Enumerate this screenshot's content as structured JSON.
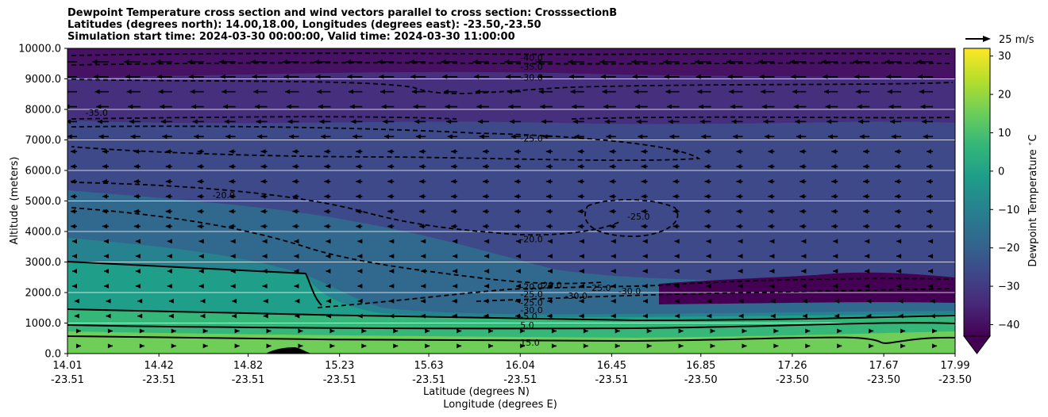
{
  "chart_data": {
    "type": "heatmap",
    "title_lines": [
      "Dewpoint Temperature cross section and wind vectors parallel to cross section: CrosssectionB",
      "Latitudes (degrees north): 14.00,18.00, Longitudes (degrees east): -23.50,-23.50",
      "Simulation start time: 2024-03-30 00:00:00, Valid time: 2024-03-30 11:00:00"
    ],
    "ylabel": "Altitude (meters)",
    "xlabel_lines": [
      "Latitude (degrees N)",
      "Longitude (degrees E)"
    ],
    "y_ticks": [
      "0.0",
      "1000.0",
      "2000.0",
      "3000.0",
      "4000.0",
      "5000.0",
      "6000.0",
      "7000.0",
      "8000.0",
      "9000.0",
      "10000.0"
    ],
    "ylim": [
      0,
      10000
    ],
    "x_ticks": [
      {
        "lat": "14.01",
        "lon": "-23.51"
      },
      {
        "lat": "14.42",
        "lon": "-23.51"
      },
      {
        "lat": "14.82",
        "lon": "-23.51"
      },
      {
        "lat": "15.23",
        "lon": "-23.51"
      },
      {
        "lat": "15.63",
        "lon": "-23.51"
      },
      {
        "lat": "16.04",
        "lon": "-23.51"
      },
      {
        "lat": "16.45",
        "lon": "-23.51"
      },
      {
        "lat": "16.85",
        "lon": "-23.50"
      },
      {
        "lat": "17.26",
        "lon": "-23.50"
      },
      {
        "lat": "17.67",
        "lon": "-23.50"
      },
      {
        "lat": "17.99",
        "lon": "-23.50"
      }
    ],
    "xlim": [
      14.01,
      17.99
    ],
    "colorbar": {
      "label": "Dewpoint Temperature $^\\circ$C",
      "ticks": [
        "30",
        "20",
        "10",
        "0",
        "−10",
        "−20",
        "−30",
        "−40"
      ],
      "range": [
        -43,
        32
      ],
      "colormap": [
        "#440154",
        "#482878",
        "#3e4989",
        "#31688e",
        "#26828e",
        "#1f9e89",
        "#35b779",
        "#6ece58",
        "#b5de2b",
        "#fde725"
      ],
      "extend": "min"
    },
    "quiver_key": {
      "label": "25 m/s",
      "speed": 25
    },
    "wind": "westward (negative) aloft, eastward (positive) in lowest layer",
    "contour_labels": [
      {
        "text": "-40.0",
        "lat": 16.04,
        "alt": 9700
      },
      {
        "text": "-35.0",
        "lat": 16.04,
        "alt": 9400
      },
      {
        "text": "-30.0",
        "lat": 16.04,
        "alt": 9050
      },
      {
        "text": "-35.0",
        "lat": 14.09,
        "alt": 7900
      },
      {
        "text": "-25.0",
        "lat": 16.04,
        "alt": 7050
      },
      {
        "text": "-20.0",
        "lat": 14.66,
        "alt": 5200
      },
      {
        "text": "-25.0",
        "lat": 16.52,
        "alt": 4500
      },
      {
        "text": "-20.0",
        "lat": 16.04,
        "alt": 3750
      },
      {
        "text": "-20.0",
        "lat": 16.04,
        "alt": 2200
      },
      {
        "text": "20.0",
        "lat": 16.14,
        "alt": 2250
      },
      {
        "text": "-25.0",
        "lat": 16.04,
        "alt": 1950
      },
      {
        "text": "-30.0",
        "lat": 16.24,
        "alt": 1900
      },
      {
        "text": "25.0",
        "lat": 16.36,
        "alt": 2150
      },
      {
        "text": "-30.0",
        "lat": 16.48,
        "alt": 2050
      },
      {
        "text": "-25.0",
        "lat": 16.04,
        "alt": 1680
      },
      {
        "text": "-30.0",
        "lat": 16.04,
        "alt": 1430
      },
      {
        "text": "-5.0",
        "lat": 16.04,
        "alt": 1220
      },
      {
        "text": "5.0",
        "lat": 16.04,
        "alt": 930
      },
      {
        "text": "15.0",
        "lat": 16.04,
        "alt": 360
      }
    ]
  }
}
